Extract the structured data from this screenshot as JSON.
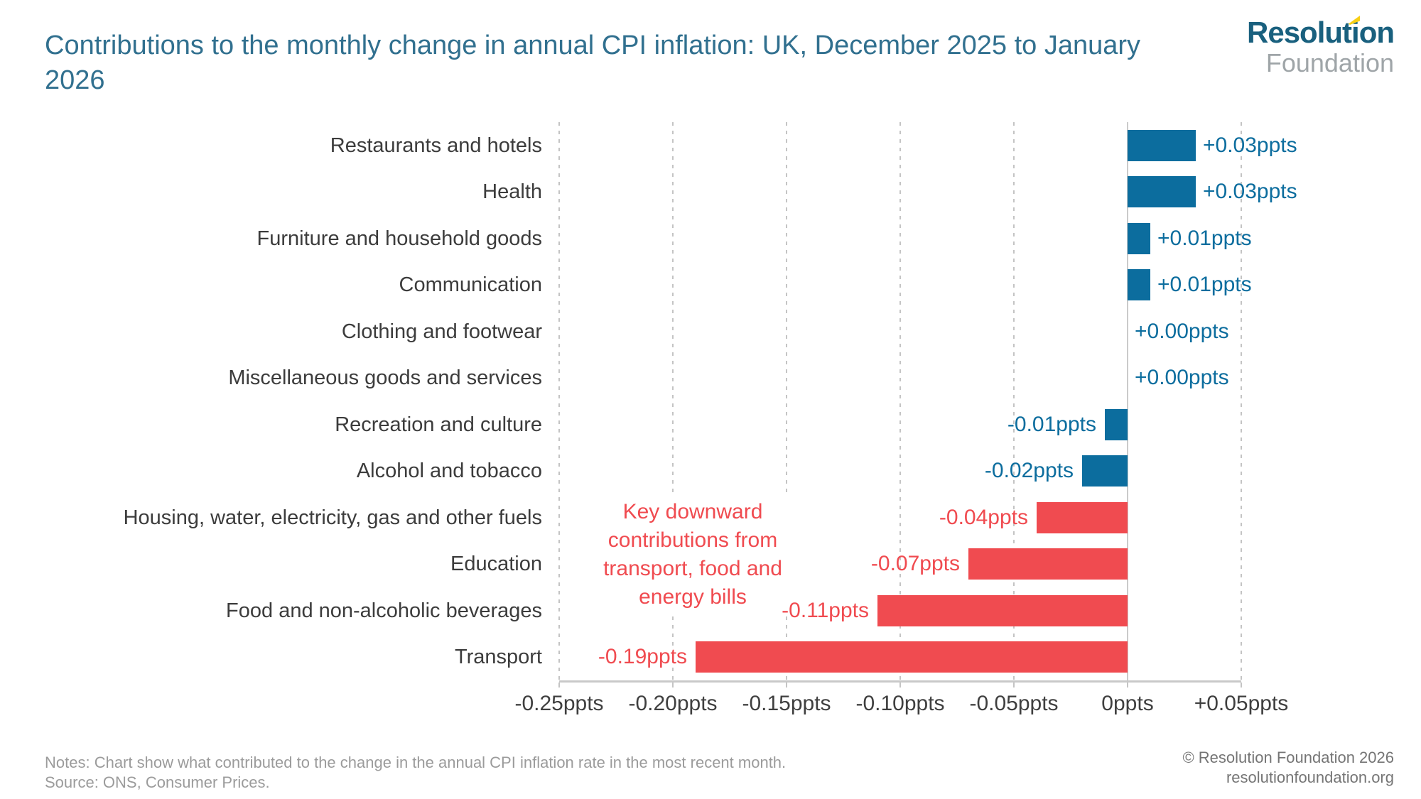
{
  "title": "Contributions to the monthly change in annual CPI inflation: UK, December 2025 to January 2026",
  "logo": {
    "name": "Resolution Foundation",
    "word1_pre": "Resolut",
    "word1_accented": "i",
    "word1_post": "on",
    "word2": "Foundation",
    "accent_color": "#f7cf15",
    "word1_color": "#19607e",
    "word2_color": "#9fa5a8"
  },
  "colors": {
    "positive_blue": "#0c6d9e",
    "negative_red": "#f04b50",
    "title_blue": "#31708f",
    "gridline_gray": "#c4c4c4",
    "axis_gray": "#c9c9c9",
    "category_text": "#3c3c3c"
  },
  "chart_data": {
    "type": "bar",
    "orientation": "horizontal",
    "unit": "ppts",
    "title": "Contributions to the monthly change in annual CPI inflation: UK, December 2025 to January 2026",
    "categories": [
      "Restaurants and hotels",
      "Health",
      "Furniture and household goods",
      "Communication",
      "Clothing and footwear",
      "Miscellaneous goods and services",
      "Recreation and culture",
      "Alcohol and tobacco",
      "Housing, water, electricity, gas and other fuels",
      "Education",
      "Food and non-alcoholic beverages",
      "Transport"
    ],
    "values": [
      0.03,
      0.03,
      0.01,
      0.01,
      0.0,
      0.0,
      -0.01,
      -0.02,
      -0.04,
      -0.07,
      -0.11,
      -0.19
    ],
    "value_labels": [
      "+0.03ppts",
      "+0.03ppts",
      "+0.01ppts",
      "+0.01ppts",
      "+0.00ppts",
      "+0.00ppts",
      "-0.01ppts",
      "-0.02ppts",
      "-0.04ppts",
      "-0.07ppts",
      "-0.11ppts",
      "-0.19ppts"
    ],
    "bar_colors": [
      "blue",
      "blue",
      "blue",
      "blue",
      "blue",
      "blue",
      "blue",
      "blue",
      "red",
      "red",
      "red",
      "red"
    ],
    "xlim": [
      -0.25,
      0.05
    ],
    "x_tick_values": [
      -0.25,
      -0.2,
      -0.15,
      -0.1,
      -0.05,
      0,
      0.05
    ],
    "x_tick_labels": [
      "-0.25ppts",
      "-0.20ppts",
      "-0.15ppts",
      "-0.10ppts",
      "-0.05ppts",
      "0ppts",
      "+0.05ppts"
    ],
    "grid": "vertical-dashed, solid zero line",
    "legend": "none",
    "annotation": {
      "text": "Key downward contributions from transport, food and energy bills",
      "lines": [
        "Key downward",
        "contributions from",
        "transport, food and",
        "energy bills"
      ],
      "color": "#f04b50"
    }
  },
  "footer": {
    "notes": "Notes: Chart show what contributed to the change in the annual CPI inflation rate in the most recent month.",
    "source": "Source: ONS, Consumer Prices.",
    "copyright": "© Resolution Foundation 2026",
    "website": "resolutionfoundation.org"
  }
}
